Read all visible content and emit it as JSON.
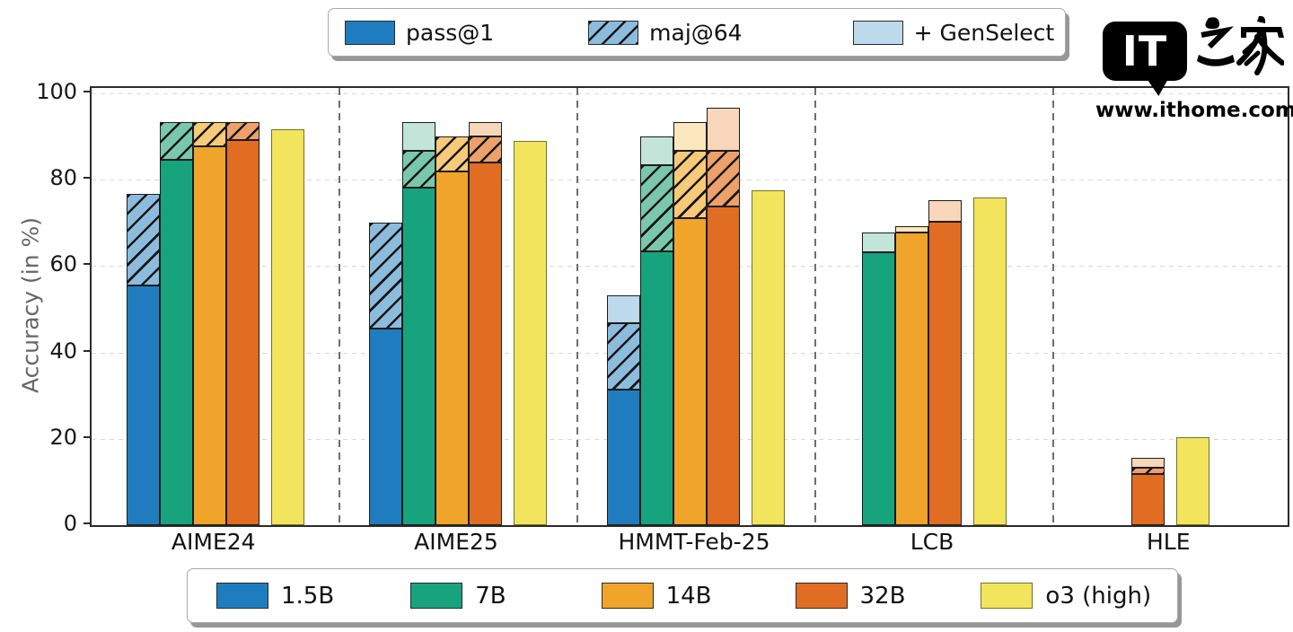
{
  "watermark": {
    "logo_text": "IT",
    "logo_cjk": "之家",
    "url": "www.ithome.com"
  },
  "chart_data": {
    "type": "bar",
    "title": "",
    "xlabel": "",
    "ylabel": "Accuracy (in %)",
    "ylim": [
      0,
      100
    ],
    "yticks": [
      0,
      20,
      40,
      60,
      80,
      100
    ],
    "grid": "horizontal-dashed",
    "stack_levels": [
      "pass@1",
      "maj@64",
      "+ GenSelect"
    ],
    "legend_top": [
      "pass@1",
      "maj@64",
      "+ GenSelect"
    ],
    "legend_bottom": [
      "1.5B",
      "7B",
      "14B",
      "32B",
      "o3 (high)"
    ],
    "models": [
      {
        "name": "1.5B",
        "color": "#1f7dbf",
        "hatch_color": "#8cbcdd",
        "light_color": "#bdd9ec"
      },
      {
        "name": "7B",
        "color": "#17a37e",
        "hatch_color": "#79c8ad",
        "light_color": "#c2e4d9"
      },
      {
        "name": "14B",
        "color": "#f0a42a",
        "hatch_color": "#f6ca79",
        "light_color": "#fbe7bd"
      },
      {
        "name": "32B",
        "color": "#e06d22",
        "hatch_color": "#eda06a",
        "light_color": "#f7d6b9"
      },
      {
        "name": "o3 (high)",
        "color": "#f2e45c",
        "hatch_color": "#f2e45c",
        "light_color": "#f2e45c"
      }
    ],
    "groups": [
      {
        "label": "AIME24",
        "bars": [
          {
            "model": "1.5B",
            "pass_1": 55.5,
            "maj_64": 76.7,
            "gen_select": null
          },
          {
            "model": "7B",
            "pass_1": 84.7,
            "maj_64": 93.3,
            "gen_select": null
          },
          {
            "model": "14B",
            "pass_1": 87.8,
            "maj_64": 93.3,
            "gen_select": null
          },
          {
            "model": "32B",
            "pass_1": 89.2,
            "maj_64": 93.3,
            "gen_select": null
          },
          {
            "model": "o3 (high)",
            "pass_1": 91.6,
            "maj_64": null,
            "gen_select": null
          }
        ]
      },
      {
        "label": "AIME25",
        "bars": [
          {
            "model": "1.5B",
            "pass_1": 45.6,
            "maj_64": 70.0,
            "gen_select": null
          },
          {
            "model": "7B",
            "pass_1": 78.2,
            "maj_64": 86.7,
            "gen_select": 93.3
          },
          {
            "model": "14B",
            "pass_1": 82.0,
            "maj_64": 90.0,
            "gen_select": null
          },
          {
            "model": "32B",
            "pass_1": 84.0,
            "maj_64": 90.0,
            "gen_select": 93.3
          },
          {
            "model": "o3 (high)",
            "pass_1": 89.0,
            "maj_64": null,
            "gen_select": null
          }
        ]
      },
      {
        "label": "HMMT-Feb-25",
        "bars": [
          {
            "model": "1.5B",
            "pass_1": 31.5,
            "maj_64": 46.7,
            "gen_select": 53.3
          },
          {
            "model": "7B",
            "pass_1": 63.5,
            "maj_64": 83.3,
            "gen_select": 90.0
          },
          {
            "model": "14B",
            "pass_1": 71.2,
            "maj_64": 86.7,
            "gen_select": 93.3
          },
          {
            "model": "32B",
            "pass_1": 73.8,
            "maj_64": 86.7,
            "gen_select": 96.7
          },
          {
            "model": "o3 (high)",
            "pass_1": 77.5,
            "maj_64": null,
            "gen_select": null
          }
        ]
      },
      {
        "label": "LCB",
        "bars": [
          {
            "model": "7B",
            "pass_1": 63.3,
            "maj_64": null,
            "gen_select": 67.7
          },
          {
            "model": "14B",
            "pass_1": 67.8,
            "maj_64": null,
            "gen_select": 69.2
          },
          {
            "model": "32B",
            "pass_1": 70.2,
            "maj_64": null,
            "gen_select": 75.3
          },
          {
            "model": "o3 (high)",
            "pass_1": 75.8,
            "maj_64": null,
            "gen_select": null
          }
        ]
      },
      {
        "label": "HLE",
        "bars": [
          {
            "model": "32B",
            "pass_1": 11.9,
            "maj_64": 13.3,
            "gen_select": 15.5
          },
          {
            "model": "o3 (high)",
            "pass_1": 20.3,
            "maj_64": null,
            "gen_select": null
          }
        ]
      }
    ]
  }
}
